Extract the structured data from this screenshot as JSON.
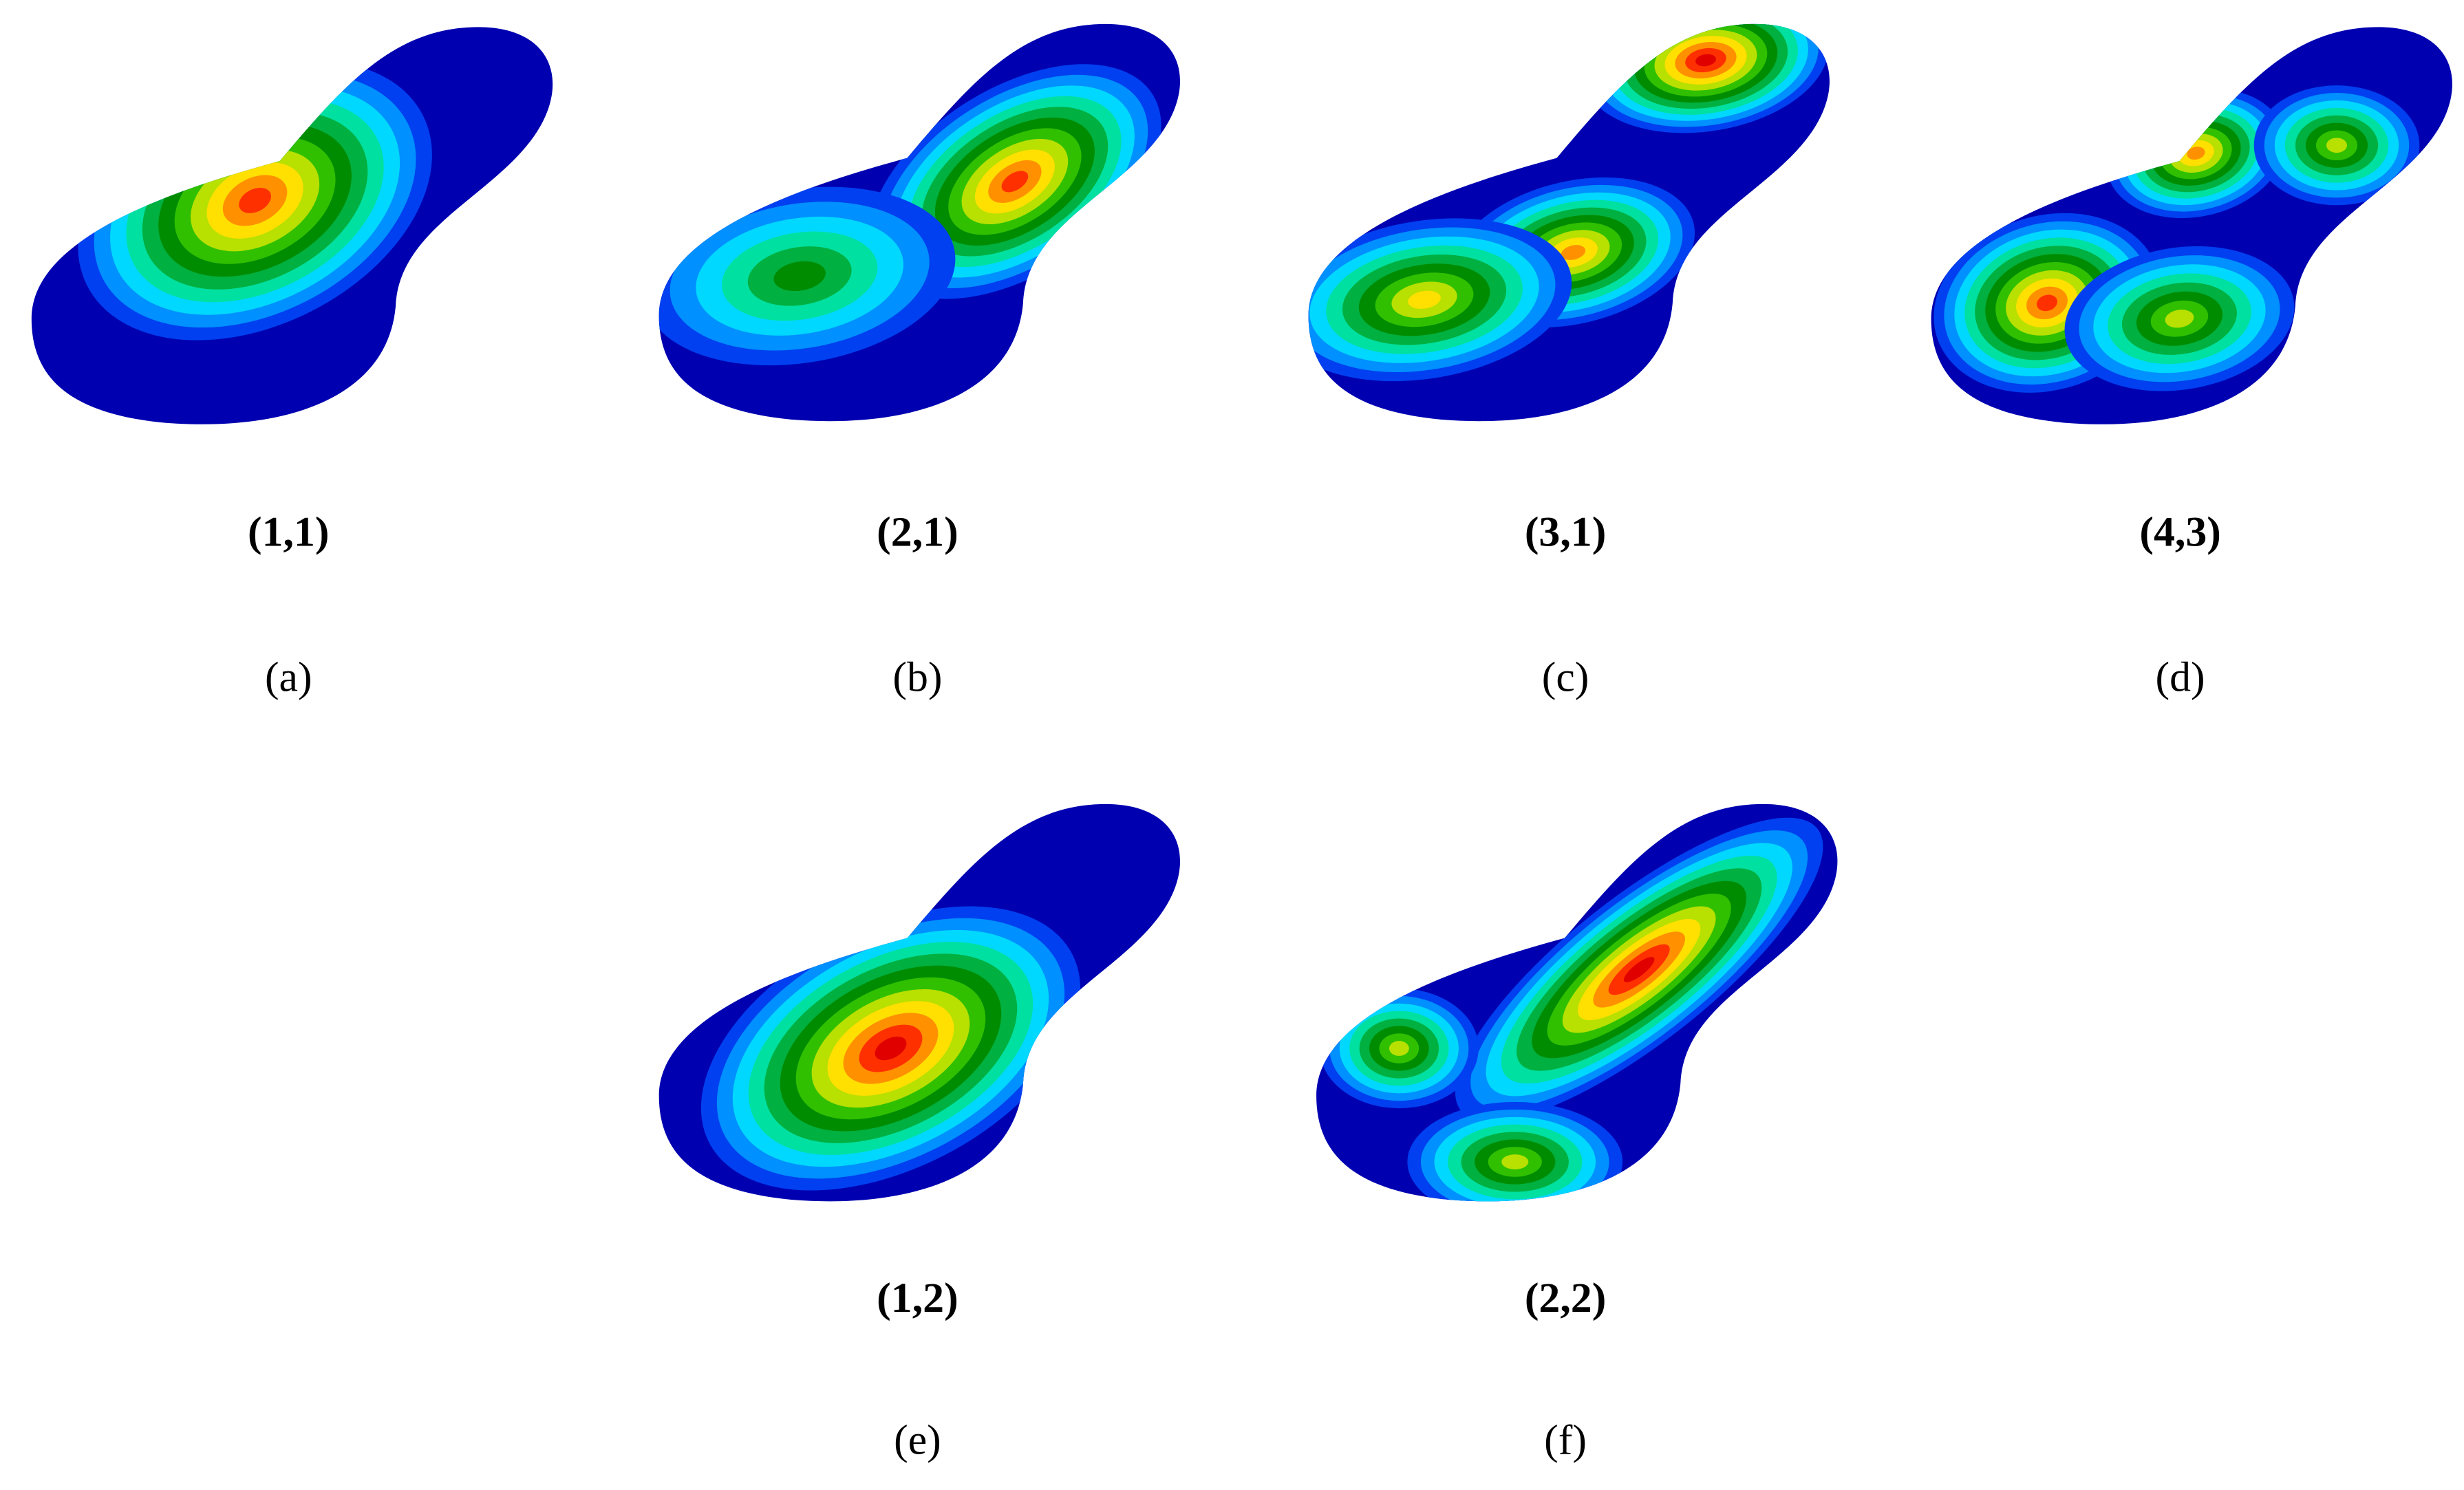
{
  "figure": {
    "panels": [
      {
        "mode": "(1,1)",
        "letter": "(a)"
      },
      {
        "mode": "(2,1)",
        "letter": "(b)"
      },
      {
        "mode": "(3,1)",
        "letter": "(c)"
      },
      {
        "mode": "(4,3)",
        "letter": "(d)"
      },
      {
        "mode": "(1,2)",
        "letter": "(e)"
      },
      {
        "mode": "(2,2)",
        "letter": "(f)"
      }
    ]
  }
}
